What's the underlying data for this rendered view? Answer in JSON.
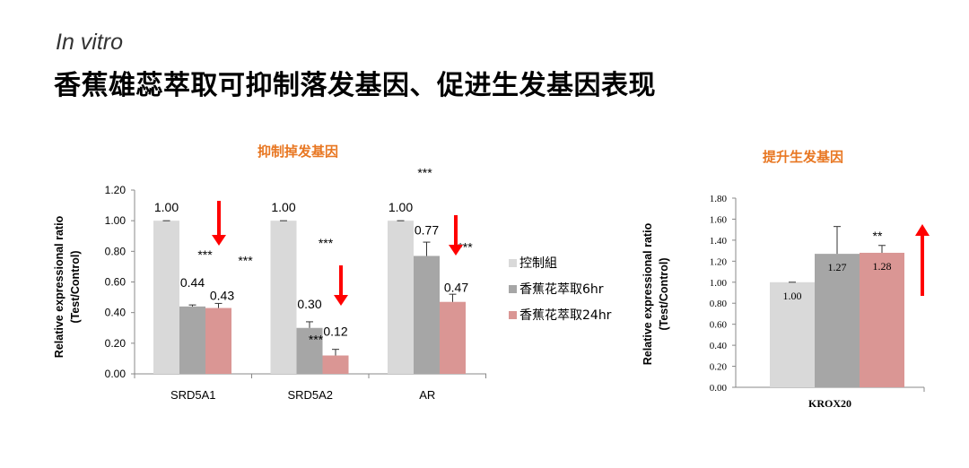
{
  "header": {
    "subtitle": "In vitro",
    "title": "香蕉雄蕊萃取可抑制落发基因、促进生发基因表现"
  },
  "chart_data": [
    {
      "type": "bar",
      "title": "抑制掉发基因",
      "ylabel": [
        "Relative expressional ratio",
        "(Test/Control)"
      ],
      "ylim": [
        0,
        1.2
      ],
      "yticks": [
        "0.00",
        "0.20",
        "0.40",
        "0.60",
        "0.80",
        "1.00",
        "1.20"
      ],
      "categories": [
        "SRD5A1",
        "SRD5A2",
        "AR"
      ],
      "series": [
        {
          "name": "控制組",
          "color": "#d9d9d9",
          "values": [
            1.0,
            1.0,
            1.0
          ],
          "errors": [
            0.0,
            0.0,
            0.0
          ],
          "labels": [
            "1.00",
            "1.00",
            "1.00"
          ],
          "stars": [
            "",
            "",
            ""
          ]
        },
        {
          "name": "香蕉花萃取6hr",
          "color": "#a6a6a6",
          "values": [
            0.44,
            0.3,
            0.77
          ],
          "errors": [
            0.01,
            0.04,
            0.09
          ],
          "labels": [
            "0.44",
            "0.30",
            "0.77"
          ],
          "stars": [
            "***",
            "***",
            "***"
          ]
        },
        {
          "name": "香蕉花萃取24hr",
          "color": "#da9694",
          "values": [
            0.43,
            0.12,
            0.47
          ],
          "errors": [
            0.03,
            0.04,
            0.05
          ],
          "labels": [
            "0.43",
            "0.12",
            "0.47"
          ],
          "stars": [
            "***",
            "***",
            "***"
          ]
        }
      ],
      "legend": "right",
      "indicators": [
        {
          "direction": "down",
          "color": "#ff0000"
        },
        {
          "direction": "down",
          "color": "#ff0000"
        },
        {
          "direction": "down",
          "color": "#ff0000"
        }
      ]
    },
    {
      "type": "bar",
      "title": "提升生发基因",
      "ylabel": [
        "Relative expressional ratio",
        "(Test/Control)"
      ],
      "ylim": [
        0,
        1.8
      ],
      "yticks": [
        "0.00",
        "0.20",
        "0.40",
        "0.60",
        "0.80",
        "1.00",
        "1.20",
        "1.40",
        "1.60",
        "1.80"
      ],
      "categories": [
        "KROX20"
      ],
      "series": [
        {
          "name": "控制組",
          "color": "#d9d9d9",
          "values": [
            1.0
          ],
          "errors": [
            0.0
          ],
          "labels": [
            "1.00"
          ],
          "stars": [
            ""
          ]
        },
        {
          "name": "香蕉花萃取6hr",
          "color": "#a6a6a6",
          "values": [
            1.27
          ],
          "errors": [
            0.26
          ],
          "labels": [
            "1.27"
          ],
          "stars": [
            ""
          ]
        },
        {
          "name": "香蕉花萃取24hr",
          "color": "#da9694",
          "values": [
            1.28
          ],
          "errors": [
            0.07
          ],
          "labels": [
            "1.28"
          ],
          "stars": [
            "**"
          ]
        }
      ],
      "indicators": [
        {
          "direction": "up",
          "color": "#ff0000"
        }
      ]
    }
  ]
}
